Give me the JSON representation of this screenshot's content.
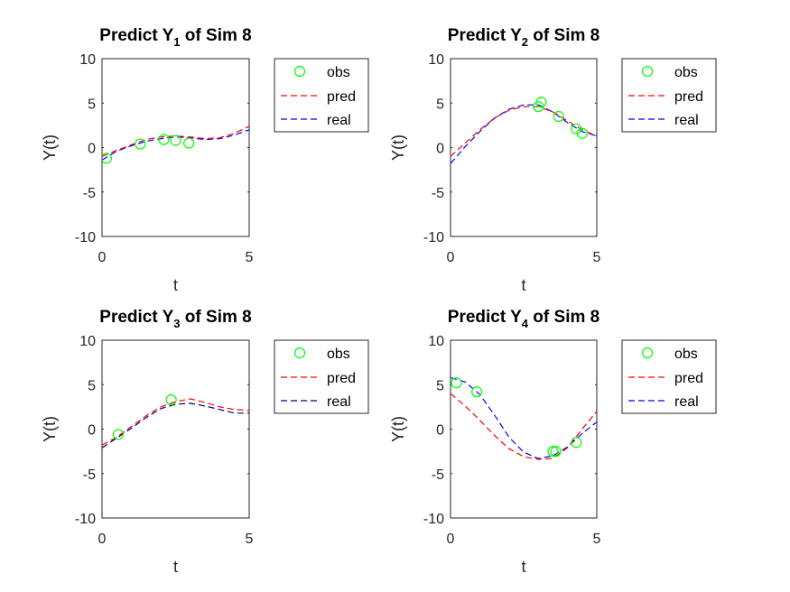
{
  "figure": {
    "colors": {
      "obs": "#00ff00",
      "pred": "#ff0000",
      "real_blue": "#0000ff",
      "real_dark": "#00007f",
      "axis": "#262626"
    }
  },
  "chart_data": [
    {
      "type": "line",
      "title_prefix": "Predict Y",
      "title_sub": "1",
      "title_suffix": " of Sim 8",
      "xlabel": "t",
      "ylabel": "Y(t)",
      "xlim": [
        0,
        5
      ],
      "ylim": [
        -10,
        10
      ],
      "xticks": [
        0,
        5
      ],
      "yticks": [
        10,
        5,
        0,
        -5,
        -10
      ],
      "grid": false,
      "legend_placement": "outside-right-top",
      "legend": [
        "obs",
        "pred",
        "real"
      ],
      "real_color": "#0000ff",
      "obs": {
        "x": [
          0.15,
          1.3,
          2.1,
          2.5,
          2.95
        ],
        "y": [
          -1.2,
          0.4,
          0.9,
          0.8,
          0.5
        ]
      },
      "pred": {
        "x": [
          0,
          0.5,
          1,
          1.5,
          2,
          2.5,
          3,
          3.5,
          4,
          4.5,
          5
        ],
        "y": [
          -1.0,
          -0.3,
          0.3,
          0.9,
          1.2,
          1.3,
          1.2,
          1.0,
          1.1,
          1.6,
          2.4
        ]
      },
      "real": {
        "x": [
          0,
          0.5,
          1,
          1.5,
          2,
          2.5,
          3,
          3.5,
          4,
          4.5,
          5
        ],
        "y": [
          -1.4,
          -0.4,
          0.2,
          0.7,
          1.0,
          1.2,
          1.1,
          0.9,
          1.0,
          1.4,
          2.0
        ]
      }
    },
    {
      "type": "line",
      "title_prefix": "Predict Y",
      "title_sub": "2",
      "title_suffix": " of Sim 8",
      "xlabel": "t",
      "ylabel": "Y(t)",
      "xlim": [
        0,
        5
      ],
      "ylim": [
        -10,
        10
      ],
      "xticks": [
        0,
        5
      ],
      "yticks": [
        10,
        5,
        0,
        -5,
        -10
      ],
      "grid": false,
      "legend_placement": "outside-right-top",
      "legend": [
        "obs",
        "pred",
        "real"
      ],
      "real_color": "#0000ff",
      "obs": {
        "x": [
          3.0,
          3.1,
          3.7,
          4.3,
          4.5
        ],
        "y": [
          4.6,
          5.1,
          3.5,
          2.1,
          1.6
        ]
      },
      "pred": {
        "x": [
          0,
          0.5,
          1,
          1.5,
          2,
          2.5,
          3,
          3.5,
          4,
          4.5,
          5
        ],
        "y": [
          -1.0,
          0.5,
          2.0,
          3.3,
          4.2,
          4.6,
          4.6,
          4.0,
          3.0,
          2.0,
          1.3
        ]
      },
      "real": {
        "x": [
          0,
          0.5,
          1,
          1.5,
          2,
          2.5,
          3,
          3.5,
          4,
          4.5,
          5
        ],
        "y": [
          -1.8,
          0.1,
          1.8,
          3.3,
          4.3,
          4.8,
          4.8,
          4.0,
          2.8,
          1.8,
          1.3
        ]
      }
    },
    {
      "type": "line",
      "title_prefix": "Predict Y",
      "title_sub": "3",
      "title_suffix": " of Sim 8",
      "xlabel": "t",
      "ylabel": "Y(t)",
      "xlim": [
        0,
        5
      ],
      "ylim": [
        -10,
        10
      ],
      "xticks": [
        0,
        5
      ],
      "yticks": [
        10,
        5,
        0,
        -5,
        -10
      ],
      "grid": false,
      "legend_placement": "outside-right-top",
      "legend": [
        "obs",
        "pred",
        "real"
      ],
      "real_color": "#00007f",
      "obs": {
        "x": [
          0.55,
          2.35
        ],
        "y": [
          -0.6,
          3.3
        ]
      },
      "pred": {
        "x": [
          0,
          0.5,
          1,
          1.5,
          2,
          2.5,
          3,
          3.5,
          4,
          4.5,
          5
        ],
        "y": [
          -1.8,
          -0.9,
          0.3,
          1.5,
          2.5,
          3.1,
          3.4,
          3.0,
          2.5,
          2.2,
          2.1
        ]
      },
      "real": {
        "x": [
          0,
          0.5,
          1,
          1.5,
          2,
          2.5,
          3,
          3.5,
          4,
          4.5,
          5
        ],
        "y": [
          -2.1,
          -1.0,
          0.1,
          1.3,
          2.3,
          2.8,
          2.9,
          2.6,
          2.2,
          1.8,
          1.8
        ]
      }
    },
    {
      "type": "line",
      "title_prefix": "Predict Y",
      "title_sub": "4",
      "title_suffix": " of Sim 8",
      "xlabel": "t",
      "ylabel": "Y(t)",
      "xlim": [
        0,
        5
      ],
      "ylim": [
        -10,
        10
      ],
      "xticks": [
        0,
        5
      ],
      "yticks": [
        10,
        5,
        0,
        -5,
        -10
      ],
      "grid": false,
      "legend_placement": "outside-right-top",
      "legend": [
        "obs",
        "pred",
        "real"
      ],
      "real_color": "#0000ff",
      "obs": {
        "x": [
          0.2,
          0.9,
          3.5,
          3.6,
          4.3
        ],
        "y": [
          5.2,
          4.2,
          -2.5,
          -2.5,
          -1.5
        ]
      },
      "pred": {
        "x": [
          0,
          0.5,
          1,
          1.5,
          2,
          2.5,
          3,
          3.5,
          4,
          4.5,
          5
        ],
        "y": [
          4.0,
          2.6,
          1.0,
          -0.7,
          -2.2,
          -3.1,
          -3.4,
          -3.3,
          -2.1,
          0.0,
          2.0
        ]
      },
      "real": {
        "x": [
          0,
          0.5,
          1,
          1.5,
          2,
          2.5,
          3,
          3.5,
          4,
          4.5,
          5
        ],
        "y": [
          5.8,
          5.3,
          3.9,
          1.6,
          -0.9,
          -2.6,
          -3.3,
          -3.0,
          -2.0,
          -0.5,
          0.8
        ]
      }
    }
  ]
}
